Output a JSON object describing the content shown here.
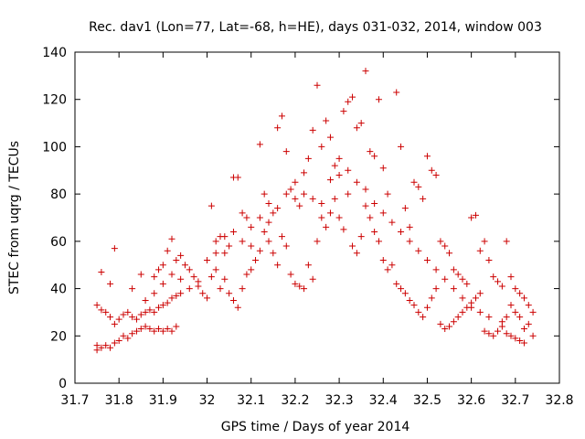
{
  "chart_data": {
    "type": "scatter",
    "title": "Rec. dav1 (Lon=77, Lat=-68, h=HE), days 031-032, 2014, window 003",
    "xlabel": "GPS time / Days of year 2014",
    "ylabel": "STEC from uqrg / TECUs",
    "xlim": [
      31.7,
      32.8
    ],
    "ylim": [
      0,
      140
    ],
    "xticks": [
      "31.7",
      "31.8",
      "31.9",
      "32",
      "32.1",
      "32.2",
      "32.3",
      "32.4",
      "32.5",
      "32.6",
      "32.7",
      "32.8"
    ],
    "yticks": [
      "0",
      "20",
      "40",
      "60",
      "80",
      "100",
      "120",
      "140"
    ],
    "grid": false,
    "legend": "none",
    "marker": "plus",
    "color": "#cc0000",
    "series": [
      {
        "points": [
          [
            31.75,
            16
          ],
          [
            31.75,
            14
          ],
          [
            31.76,
            15
          ],
          [
            31.77,
            16
          ],
          [
            31.78,
            15
          ],
          [
            31.79,
            17
          ],
          [
            31.8,
            18
          ],
          [
            31.81,
            20
          ],
          [
            31.82,
            19
          ],
          [
            31.83,
            21
          ],
          [
            31.84,
            22
          ],
          [
            31.85,
            23
          ],
          [
            31.86,
            24
          ],
          [
            31.87,
            23
          ],
          [
            31.88,
            22
          ],
          [
            31.89,
            23
          ],
          [
            31.9,
            22
          ],
          [
            31.91,
            23
          ],
          [
            31.92,
            22
          ],
          [
            31.93,
            24
          ],
          [
            31.75,
            33
          ],
          [
            31.76,
            31
          ],
          [
            31.77,
            30
          ],
          [
            31.78,
            28
          ],
          [
            31.79,
            25
          ],
          [
            31.8,
            27
          ],
          [
            31.81,
            29
          ],
          [
            31.82,
            30
          ],
          [
            31.83,
            28
          ],
          [
            31.84,
            27
          ],
          [
            31.85,
            29
          ],
          [
            31.86,
            30
          ],
          [
            31.87,
            31
          ],
          [
            31.88,
            30
          ],
          [
            31.89,
            32
          ],
          [
            31.9,
            33
          ],
          [
            31.91,
            34
          ],
          [
            31.92,
            36
          ],
          [
            31.93,
            37
          ],
          [
            31.94,
            38
          ],
          [
            31.76,
            47
          ],
          [
            31.78,
            42
          ],
          [
            31.79,
            57
          ],
          [
            31.83,
            40
          ],
          [
            31.85,
            46
          ],
          [
            31.88,
            45
          ],
          [
            31.89,
            48
          ],
          [
            31.9,
            50
          ],
          [
            31.91,
            56
          ],
          [
            31.92,
            61
          ],
          [
            31.93,
            52
          ],
          [
            31.94,
            54
          ],
          [
            31.95,
            50
          ],
          [
            31.96,
            48
          ],
          [
            31.97,
            45
          ],
          [
            31.98,
            41
          ],
          [
            31.99,
            38
          ],
          [
            32.0,
            36
          ],
          [
            32.01,
            45
          ],
          [
            32.02,
            48
          ],
          [
            32.01,
            75
          ],
          [
            32.02,
            60
          ],
          [
            32.03,
            62
          ],
          [
            32.04,
            55
          ],
          [
            32.05,
            58
          ],
          [
            32.06,
            87
          ],
          [
            32.07,
            87
          ],
          [
            32.08,
            72
          ],
          [
            32.09,
            70
          ],
          [
            32.1,
            66
          ],
          [
            32.03,
            40
          ],
          [
            32.04,
            44
          ],
          [
            32.05,
            38
          ],
          [
            32.06,
            35
          ],
          [
            32.07,
            32
          ],
          [
            32.08,
            40
          ],
          [
            32.09,
            46
          ],
          [
            32.1,
            48
          ],
          [
            32.11,
            52
          ],
          [
            32.12,
            56
          ],
          [
            32.12,
            101
          ],
          [
            32.13,
            80
          ],
          [
            32.14,
            76
          ],
          [
            32.15,
            72
          ],
          [
            32.16,
            108
          ],
          [
            32.17,
            113
          ],
          [
            32.18,
            98
          ],
          [
            32.19,
            82
          ],
          [
            32.2,
            78
          ],
          [
            32.21,
            75
          ],
          [
            32.13,
            64
          ],
          [
            32.14,
            60
          ],
          [
            32.15,
            55
          ],
          [
            32.16,
            50
          ],
          [
            32.17,
            62
          ],
          [
            32.18,
            58
          ],
          [
            32.19,
            46
          ],
          [
            32.2,
            42
          ],
          [
            32.21,
            41
          ],
          [
            32.22,
            40
          ],
          [
            32.22,
            89
          ],
          [
            32.23,
            95
          ],
          [
            32.24,
            107
          ],
          [
            32.25,
            126
          ],
          [
            32.26,
            100
          ],
          [
            32.27,
            111
          ],
          [
            32.28,
            104
          ],
          [
            32.29,
            92
          ],
          [
            32.3,
            88
          ],
          [
            32.31,
            115
          ],
          [
            32.23,
            50
          ],
          [
            32.24,
            44
          ],
          [
            32.25,
            60
          ],
          [
            32.26,
            70
          ],
          [
            32.27,
            66
          ],
          [
            32.28,
            72
          ],
          [
            32.29,
            78
          ],
          [
            32.3,
            70
          ],
          [
            32.31,
            65
          ],
          [
            32.32,
            80
          ],
          [
            32.32,
            119
          ],
          [
            32.33,
            121
          ],
          [
            32.34,
            108
          ],
          [
            32.35,
            110
          ],
          [
            32.36,
            132
          ],
          [
            32.37,
            98
          ],
          [
            32.38,
            96
          ],
          [
            32.39,
            120
          ],
          [
            32.4,
            91
          ],
          [
            32.41,
            80
          ],
          [
            32.33,
            58
          ],
          [
            32.34,
            55
          ],
          [
            32.35,
            62
          ],
          [
            32.36,
            75
          ],
          [
            32.37,
            70
          ],
          [
            32.38,
            64
          ],
          [
            32.39,
            60
          ],
          [
            32.4,
            52
          ],
          [
            32.41,
            48
          ],
          [
            32.42,
            50
          ],
          [
            32.43,
            123
          ],
          [
            32.44,
            100
          ],
          [
            32.45,
            74
          ],
          [
            32.46,
            66
          ],
          [
            32.47,
            85
          ],
          [
            32.48,
            83
          ],
          [
            32.49,
            78
          ],
          [
            32.5,
            96
          ],
          [
            32.51,
            90
          ],
          [
            32.52,
            88
          ],
          [
            32.43,
            42
          ],
          [
            32.44,
            40
          ],
          [
            32.45,
            38
          ],
          [
            32.46,
            35
          ],
          [
            32.47,
            33
          ],
          [
            32.48,
            30
          ],
          [
            32.49,
            28
          ],
          [
            32.5,
            32
          ],
          [
            32.51,
            36
          ],
          [
            32.52,
            40
          ],
          [
            32.53,
            60
          ],
          [
            32.54,
            58
          ],
          [
            32.55,
            55
          ],
          [
            32.56,
            48
          ],
          [
            32.57,
            46
          ],
          [
            32.58,
            44
          ],
          [
            32.59,
            42
          ],
          [
            32.6,
            70
          ],
          [
            32.61,
            71
          ],
          [
            32.62,
            56
          ],
          [
            32.53,
            25
          ],
          [
            32.54,
            23
          ],
          [
            32.55,
            24
          ],
          [
            32.56,
            26
          ],
          [
            32.57,
            28
          ],
          [
            32.58,
            30
          ],
          [
            32.59,
            32
          ],
          [
            32.6,
            34
          ],
          [
            32.61,
            36
          ],
          [
            32.62,
            38
          ],
          [
            32.63,
            60
          ],
          [
            32.64,
            52
          ],
          [
            32.65,
            45
          ],
          [
            32.66,
            43
          ],
          [
            32.67,
            41
          ],
          [
            32.68,
            60
          ],
          [
            32.69,
            45
          ],
          [
            32.7,
            40
          ],
          [
            32.71,
            38
          ],
          [
            32.72,
            36
          ],
          [
            32.63,
            22
          ],
          [
            32.64,
            21
          ],
          [
            32.65,
            20
          ],
          [
            32.66,
            22
          ],
          [
            32.67,
            24
          ],
          [
            32.68,
            21
          ],
          [
            32.69,
            20
          ],
          [
            32.7,
            19
          ],
          [
            32.71,
            18
          ],
          [
            32.72,
            17
          ],
          [
            32.73,
            33
          ],
          [
            32.74,
            30
          ],
          [
            32.73,
            25
          ],
          [
            32.74,
            20
          ],
          [
            32.72,
            23
          ],
          [
            32.71,
            28
          ],
          [
            32.7,
            30
          ],
          [
            32.69,
            33
          ],
          [
            32.68,
            28
          ],
          [
            32.67,
            26
          ],
          [
            31.86,
            35
          ],
          [
            31.88,
            38
          ],
          [
            31.9,
            42
          ],
          [
            31.92,
            46
          ],
          [
            31.94,
            44
          ],
          [
            31.96,
            40
          ],
          [
            31.98,
            43
          ],
          [
            32.0,
            52
          ],
          [
            32.02,
            55
          ],
          [
            32.04,
            62
          ],
          [
            32.06,
            64
          ],
          [
            32.08,
            60
          ],
          [
            32.1,
            58
          ],
          [
            32.12,
            70
          ],
          [
            32.14,
            68
          ],
          [
            32.16,
            74
          ],
          [
            32.18,
            80
          ],
          [
            32.2,
            85
          ],
          [
            32.22,
            80
          ],
          [
            32.24,
            78
          ],
          [
            32.26,
            76
          ],
          [
            32.28,
            86
          ],
          [
            32.3,
            95
          ],
          [
            32.32,
            90
          ],
          [
            32.34,
            85
          ],
          [
            32.36,
            82
          ],
          [
            32.38,
            76
          ],
          [
            32.4,
            72
          ],
          [
            32.42,
            68
          ],
          [
            32.44,
            64
          ],
          [
            32.46,
            60
          ],
          [
            32.48,
            56
          ],
          [
            32.5,
            52
          ],
          [
            32.52,
            48
          ],
          [
            32.54,
            44
          ],
          [
            32.56,
            40
          ],
          [
            32.58,
            36
          ],
          [
            32.6,
            32
          ],
          [
            32.62,
            30
          ],
          [
            32.64,
            28
          ]
        ]
      }
    ]
  }
}
